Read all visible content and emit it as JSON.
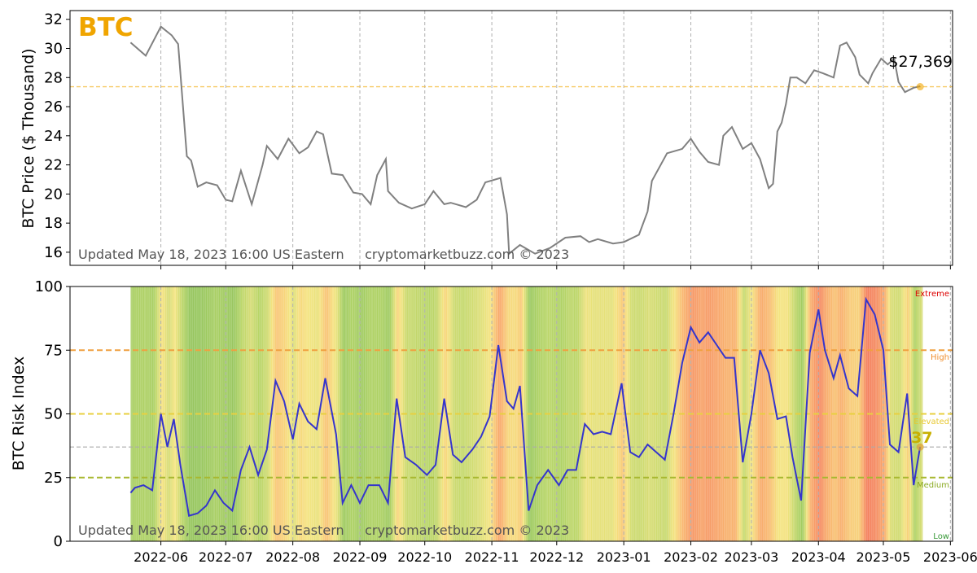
{
  "chart_data": [
    {
      "type": "line",
      "title": "BTC",
      "ylabel": "BTC Price ($ Thousand)",
      "xlabel": "",
      "ylim": [
        15.1,
        32.6
      ],
      "xlim": [
        "2022-04-20",
        "2023-06-02"
      ],
      "grid": "vertical dashed at month starts",
      "yticks": [
        16,
        18,
        20,
        22,
        24,
        26,
        28,
        30,
        32
      ],
      "current_value": 27.369,
      "current_label": "$27,369",
      "current_date": "2023-05-18",
      "footer": "Updated May 18, 2023 16:00 US Eastern     cryptomarketbuzz.com © 2023",
      "series": [
        {
          "color": "#808080",
          "x": [
            "2022-05-18",
            "2022-05-25",
            "2022-06-01",
            "2022-06-06",
            "2022-06-09",
            "2022-06-13",
            "2022-06-15",
            "2022-06-18",
            "2022-06-22",
            "2022-06-27",
            "2022-07-01",
            "2022-07-04",
            "2022-07-08",
            "2022-07-13",
            "2022-07-18",
            "2022-07-20",
            "2022-07-25",
            "2022-07-30",
            "2022-08-04",
            "2022-08-08",
            "2022-08-12",
            "2022-08-15",
            "2022-08-19",
            "2022-08-24",
            "2022-08-29",
            "2022-09-02",
            "2022-09-06",
            "2022-09-09",
            "2022-09-13",
            "2022-09-14",
            "2022-09-19",
            "2022-09-25",
            "2022-10-01",
            "2022-10-05",
            "2022-10-10",
            "2022-10-13",
            "2022-10-20",
            "2022-10-25",
            "2022-10-29",
            "2022-11-05",
            "2022-11-08",
            "2022-11-09",
            "2022-11-14",
            "2022-11-21",
            "2022-11-28",
            "2022-12-05",
            "2022-12-12",
            "2022-12-16",
            "2022-12-20",
            "2022-12-27",
            "2023-01-01",
            "2023-01-08",
            "2023-01-12",
            "2023-01-14",
            "2023-01-21",
            "2023-01-28",
            "2023-02-01",
            "2023-02-05",
            "2023-02-09",
            "2023-02-14",
            "2023-02-16",
            "2023-02-20",
            "2023-02-25",
            "2023-03-01",
            "2023-03-05",
            "2023-03-09",
            "2023-03-11",
            "2023-03-13",
            "2023-03-15",
            "2023-03-17",
            "2023-03-19",
            "2023-03-22",
            "2023-03-26",
            "2023-03-30",
            "2023-04-03",
            "2023-04-08",
            "2023-04-11",
            "2023-04-14",
            "2023-04-18",
            "2023-04-20",
            "2023-04-24",
            "2023-04-26",
            "2023-04-30",
            "2023-05-03",
            "2023-05-06",
            "2023-05-08",
            "2023-05-11",
            "2023-05-15",
            "2023-05-18"
          ],
          "y": [
            30.4,
            29.5,
            31.5,
            30.9,
            30.3,
            22.6,
            22.3,
            20.5,
            20.8,
            20.6,
            19.6,
            19.5,
            21.6,
            19.3,
            22.0,
            23.3,
            22.4,
            23.8,
            22.8,
            23.2,
            24.3,
            24.1,
            21.4,
            21.3,
            20.1,
            20.0,
            19.3,
            21.3,
            22.4,
            20.2,
            19.4,
            19.0,
            19.3,
            20.2,
            19.3,
            19.4,
            19.1,
            19.6,
            20.8,
            21.1,
            18.6,
            15.9,
            16.5,
            15.9,
            16.3,
            17.0,
            17.1,
            16.7,
            16.9,
            16.6,
            16.7,
            17.2,
            18.8,
            20.9,
            22.8,
            23.1,
            23.8,
            22.9,
            22.2,
            22.0,
            24.0,
            24.6,
            23.1,
            23.5,
            22.4,
            20.4,
            20.7,
            24.3,
            24.9,
            26.2,
            28.0,
            28.0,
            27.6,
            28.5,
            28.3,
            28.0,
            30.2,
            30.4,
            29.4,
            28.2,
            27.6,
            28.3,
            29.3,
            28.9,
            29.3,
            27.7,
            27.0,
            27.3,
            27.4
          ]
        }
      ]
    },
    {
      "type": "line",
      "ylabel": "BTC Risk Index",
      "xlabel": "",
      "ylim": [
        0,
        100
      ],
      "xlim": [
        "2022-04-20",
        "2023-06-02"
      ],
      "yticks": [
        0,
        25,
        50,
        75,
        100
      ],
      "xticks": [
        "2022-06",
        "2022-07",
        "2022-08",
        "2022-09",
        "2022-10",
        "2022-11",
        "2022-12",
        "2023-01",
        "2023-02",
        "2023-03",
        "2023-04",
        "2023-05",
        "2023-06"
      ],
      "current_value": 37,
      "current_label": "37",
      "footer": "Updated May 18, 2023 16:00 US Eastern     cryptomarketbuzz.com © 2023",
      "zones": [
        {
          "label": "Extreme",
          "value": 100,
          "color": "#dd0000"
        },
        {
          "label": "High",
          "value": 75,
          "color": "#f09030"
        },
        {
          "label": "Elevated",
          "value": 50,
          "color": "#e8c830"
        },
        {
          "label": "Medium",
          "value": 25,
          "color": "#8aaa20"
        },
        {
          "label": "Low",
          "value": 0,
          "color": "#3a9a3a"
        }
      ],
      "series": [
        {
          "color": "#3535cc",
          "x": [
            "2022-05-18",
            "2022-05-20",
            "2022-05-24",
            "2022-05-28",
            "2022-06-01",
            "2022-06-04",
            "2022-06-07",
            "2022-06-10",
            "2022-06-14",
            "2022-06-18",
            "2022-06-22",
            "2022-06-26",
            "2022-06-30",
            "2022-07-04",
            "2022-07-08",
            "2022-07-12",
            "2022-07-16",
            "2022-07-20",
            "2022-07-24",
            "2022-07-28",
            "2022-08-01",
            "2022-08-04",
            "2022-08-08",
            "2022-08-12",
            "2022-08-16",
            "2022-08-21",
            "2022-08-24",
            "2022-08-28",
            "2022-09-01",
            "2022-09-05",
            "2022-09-10",
            "2022-09-14",
            "2022-09-18",
            "2022-09-22",
            "2022-09-27",
            "2022-10-02",
            "2022-10-06",
            "2022-10-10",
            "2022-10-14",
            "2022-10-18",
            "2022-10-23",
            "2022-10-27",
            "2022-10-31",
            "2022-11-04",
            "2022-11-08",
            "2022-11-11",
            "2022-11-14",
            "2022-11-18",
            "2022-11-22",
            "2022-11-27",
            "2022-12-02",
            "2022-12-06",
            "2022-12-10",
            "2022-12-14",
            "2022-12-18",
            "2022-12-22",
            "2022-12-26",
            "2022-12-31",
            "2023-01-04",
            "2023-01-08",
            "2023-01-12",
            "2023-01-16",
            "2023-01-20",
            "2023-01-24",
            "2023-01-28",
            "2023-02-01",
            "2023-02-05",
            "2023-02-09",
            "2023-02-13",
            "2023-02-17",
            "2023-02-21",
            "2023-02-25",
            "2023-03-01",
            "2023-03-05",
            "2023-03-09",
            "2023-03-13",
            "2023-03-17",
            "2023-03-20",
            "2023-03-24",
            "2023-03-28",
            "2023-04-01",
            "2023-04-04",
            "2023-04-08",
            "2023-04-11",
            "2023-04-15",
            "2023-04-19",
            "2023-04-23",
            "2023-04-27",
            "2023-05-01",
            "2023-05-04",
            "2023-05-08",
            "2023-05-12",
            "2023-05-15",
            "2023-05-18"
          ],
          "y": [
            19,
            21,
            22,
            20,
            50,
            37,
            48,
            30,
            10,
            11,
            14,
            20,
            15,
            12,
            28,
            37,
            26,
            36,
            63,
            55,
            40,
            54,
            47,
            44,
            64,
            42,
            15,
            22,
            15,
            22,
            22,
            15,
            56,
            33,
            30,
            26,
            30,
            56,
            34,
            31,
            36,
            41,
            49,
            77,
            55,
            52,
            61,
            12,
            22,
            28,
            22,
            28,
            28,
            46,
            42,
            43,
            42,
            62,
            35,
            33,
            38,
            35,
            32,
            50,
            70,
            84,
            78,
            82,
            77,
            72,
            72,
            31,
            50,
            75,
            66,
            48,
            49,
            33,
            16,
            74,
            91,
            75,
            64,
            73,
            60,
            57,
            95,
            89,
            75,
            38,
            35,
            58,
            22,
            37
          ]
        }
      ]
    }
  ]
}
